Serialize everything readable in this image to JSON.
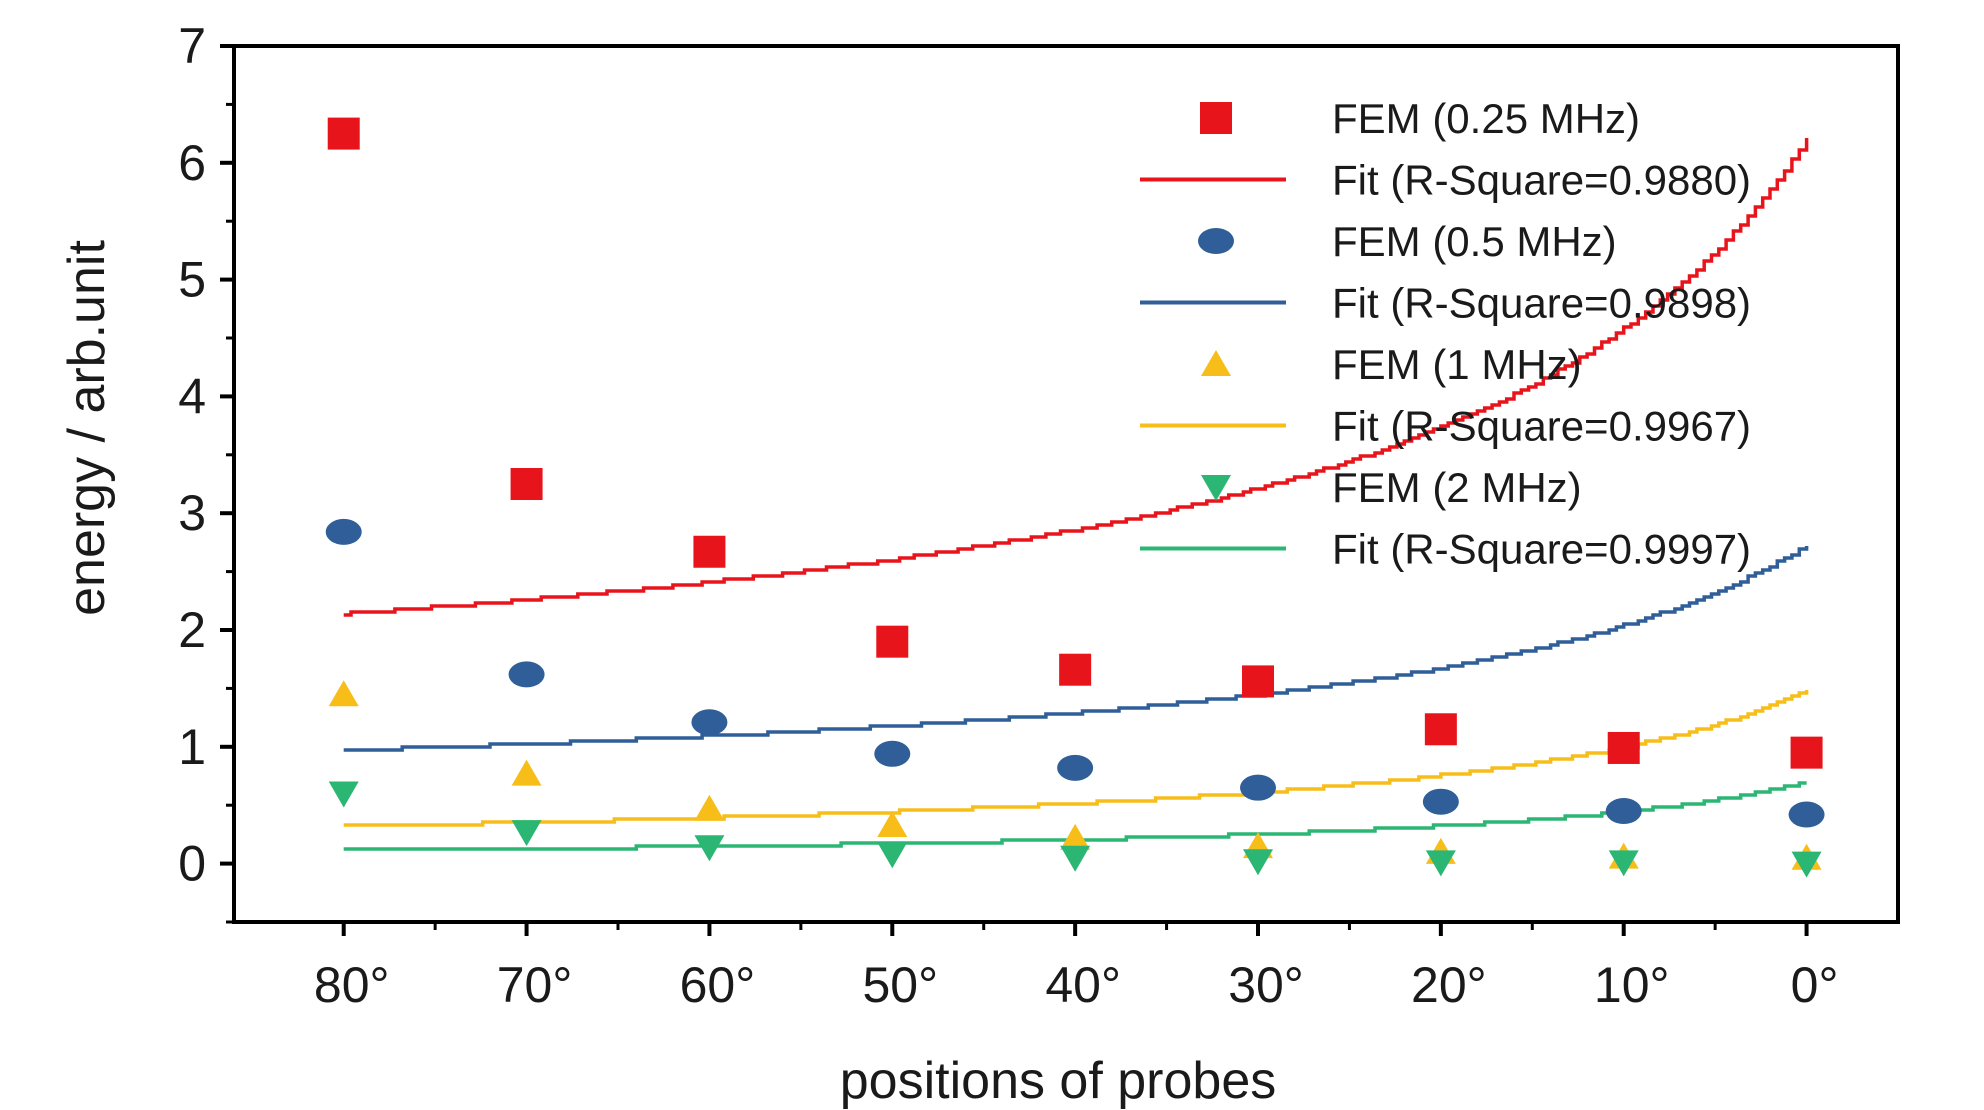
{
  "chart_data": {
    "type": "line",
    "title": "",
    "xlabel": "positions of probes",
    "ylabel": "energy / arb.unit",
    "x": [
      80,
      70,
      60,
      50,
      40,
      30,
      20,
      10,
      0
    ],
    "x_tick_labels": [
      "80°",
      "70°",
      "60°",
      "50°",
      "40°",
      "30°",
      "20°",
      "10°",
      "0°"
    ],
    "x_reversed": true,
    "xlim": [
      86,
      -5
    ],
    "ylim": [
      -0.5,
      7
    ],
    "y_ticks": [
      0,
      1,
      2,
      3,
      4,
      5,
      6,
      7
    ],
    "y_tick_labels": [
      "0",
      "1",
      "2",
      "3",
      "4",
      "5",
      "6",
      "7"
    ],
    "grid": false,
    "legend_position": "top-right",
    "series": [
      {
        "name": "FEM (0.25 MHz)",
        "marker": "square",
        "color": "#e8141b",
        "values": [
          6.25,
          3.25,
          2.67,
          1.9,
          1.66,
          1.56,
          1.15,
          0.99,
          0.95
        ],
        "fit_name": "Fit (R-Square=0.9880)",
        "fit": {
          "a": 1.02,
          "b": 11.4,
          "c": 2.2
        }
      },
      {
        "name": "FEM (0.5 MHz)",
        "marker": "ellipse",
        "color": "#2f5e98",
        "values": [
          2.84,
          1.62,
          1.21,
          0.94,
          0.82,
          0.65,
          0.53,
          0.45,
          0.42
        ],
        "fit_name": "Fit (R-Square=0.9898)",
        "fit": {
          "a": 0.465,
          "b": 5.2,
          "c": 2.3
        }
      },
      {
        "name": "FEM (1 MHz)",
        "marker": "triangle-up",
        "color": "#f7be1a",
        "values": [
          1.45,
          0.77,
          0.47,
          0.33,
          0.22,
          0.15,
          0.1,
          0.06,
          0.05
        ],
        "fit_name": "Fit (R-Square=0.9967)",
        "fit": {
          "a": 0.03,
          "b": 2.9,
          "c": 2.0
        }
      },
      {
        "name": "FEM (2 MHz)",
        "marker": "triangle-down",
        "color": "#2bb673",
        "values": [
          0.6,
          0.27,
          0.14,
          0.08,
          0.05,
          0.02,
          0.01,
          0.01,
          0.0
        ],
        "fit_name": "Fit (R-Square=0.9997)",
        "fit": {
          "a": -0.02,
          "b": 1.3,
          "c": 1.8
        }
      }
    ]
  }
}
